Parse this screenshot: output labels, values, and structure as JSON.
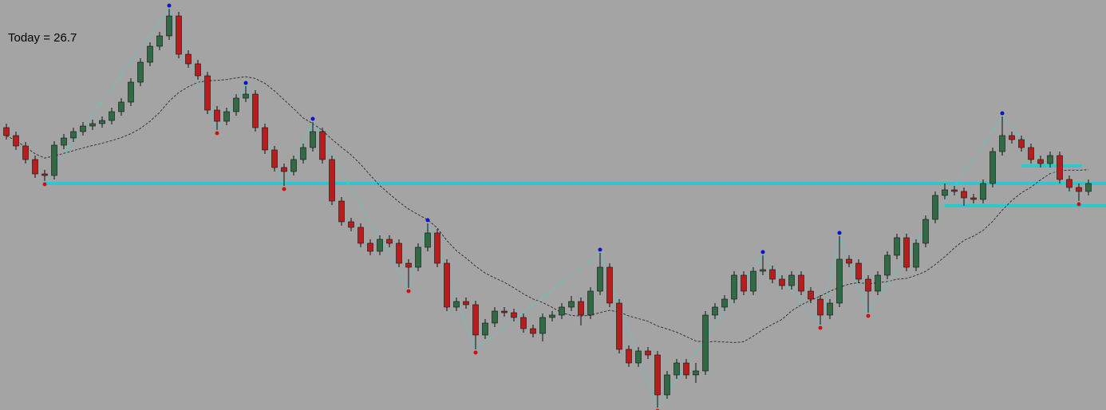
{
  "chart_data": {
    "type": "candlestick",
    "annotation": "Today = 26.7",
    "ylim": [
      0,
      514
    ],
    "background": "#a4a4a4",
    "up_color": "#2f6a45",
    "down_color": "#b81d1d",
    "wick_color": "#111111",
    "zigzag_color": "#3fd6d6",
    "level_color": "#2ec8cc",
    "ma_color": "#333333",
    "pivot_high_color": "#0a14c8",
    "pivot_low_color": "#d01010",
    "ma_period": 14,
    "open": [
      354,
      344,
      331,
      314,
      296,
      294,
      332,
      341,
      349,
      356,
      359,
      363,
      374,
      386,
      411,
      436,
      456,
      469,
      494,
      446,
      434,
      419,
      376,
      362,
      374,
      391,
      396,
      354,
      326,
      304,
      299,
      314,
      329,
      349,
      314,
      262,
      236,
      229,
      209,
      199,
      214,
      209,
      184,
      179,
      204,
      222,
      184,
      129,
      136,
      132,
      94,
      109,
      124,
      122,
      116,
      102,
      96,
      116,
      119,
      129,
      136,
      119,
      149,
      179,
      134,
      76,
      59,
      74,
      69,
      19,
      44,
      59,
      44,
      49,
      119,
      129,
      139,
      169,
      149,
      174,
      176,
      164,
      156,
      169,
      149,
      139,
      119,
      134,
      189,
      184,
      164,
      149,
      169,
      194,
      216,
      179,
      209,
      239,
      269,
      276,
      274,
      266,
      264,
      284,
      324,
      344,
      339,
      329,
      314,
      309,
      319,
      289,
      279,
      274
    ],
    "high": [
      359,
      349,
      336,
      319,
      301,
      337,
      346,
      354,
      361,
      364,
      368,
      379,
      391,
      416,
      441,
      461,
      474,
      503,
      499,
      451,
      439,
      424,
      381,
      379,
      396,
      406,
      401,
      359,
      331,
      309,
      319,
      334,
      361,
      354,
      319,
      267,
      241,
      234,
      214,
      219,
      219,
      214,
      189,
      209,
      234,
      227,
      189,
      141,
      141,
      137,
      114,
      129,
      129,
      127,
      121,
      107,
      121,
      124,
      134,
      143,
      141,
      154,
      197,
      184,
      139,
      81,
      79,
      79,
      74,
      49,
      64,
      64,
      59,
      124,
      134,
      144,
      174,
      174,
      179,
      194,
      181,
      169,
      174,
      174,
      154,
      144,
      139,
      218,
      194,
      189,
      169,
      174,
      199,
      221,
      221,
      214,
      244,
      274,
      284,
      281,
      279,
      271,
      289,
      329,
      368,
      349,
      344,
      334,
      319,
      324,
      324,
      294,
      284,
      289
    ],
    "low": [
      339,
      326,
      309,
      291,
      287,
      289,
      327,
      336,
      344,
      351,
      354,
      358,
      369,
      381,
      406,
      431,
      451,
      464,
      441,
      429,
      414,
      371,
      351,
      357,
      369,
      386,
      349,
      321,
      299,
      281,
      294,
      309,
      324,
      309,
      257,
      231,
      224,
      204,
      194,
      194,
      204,
      179,
      153,
      174,
      199,
      179,
      124,
      124,
      127,
      76,
      89,
      104,
      117,
      111,
      97,
      91,
      86,
      111,
      114,
      124,
      106,
      114,
      144,
      129,
      71,
      54,
      54,
      64,
      3,
      14,
      39,
      39,
      34,
      44,
      114,
      124,
      134,
      144,
      144,
      169,
      159,
      151,
      151,
      144,
      134,
      107,
      114,
      129,
      179,
      159,
      122,
      144,
      164,
      189,
      174,
      174,
      204,
      234,
      264,
      269,
      256,
      259,
      259,
      279,
      319,
      334,
      324,
      309,
      304,
      304,
      284,
      274,
      262,
      269
    ],
    "close": [
      344,
      331,
      314,
      296,
      294,
      332,
      341,
      349,
      356,
      359,
      363,
      374,
      386,
      411,
      436,
      456,
      469,
      494,
      446,
      434,
      419,
      376,
      362,
      374,
      391,
      396,
      354,
      326,
      304,
      299,
      314,
      329,
      349,
      314,
      262,
      236,
      229,
      209,
      199,
      214,
      209,
      184,
      179,
      204,
      222,
      184,
      129,
      136,
      132,
      94,
      109,
      124,
      122,
      116,
      102,
      96,
      116,
      119,
      129,
      136,
      119,
      149,
      179,
      134,
      76,
      59,
      74,
      69,
      19,
      44,
      59,
      44,
      49,
      119,
      129,
      139,
      169,
      149,
      174,
      176,
      164,
      156,
      169,
      149,
      139,
      119,
      134,
      189,
      184,
      164,
      149,
      169,
      194,
      216,
      179,
      209,
      239,
      269,
      276,
      274,
      266,
      264,
      284,
      324,
      344,
      339,
      329,
      314,
      309,
      319,
      289,
      279,
      274,
      284
    ],
    "pivot_highs": [
      17,
      25,
      32,
      44,
      62,
      79,
      87,
      104
    ],
    "pivot_lows": [
      4,
      22,
      29,
      42,
      49,
      68,
      85,
      90,
      112
    ],
    "levels": [
      {
        "value": 284,
        "start": 4
      },
      {
        "value": 256,
        "start": 98
      },
      {
        "value": 306,
        "start": 106,
        "end": 112
      }
    ]
  }
}
